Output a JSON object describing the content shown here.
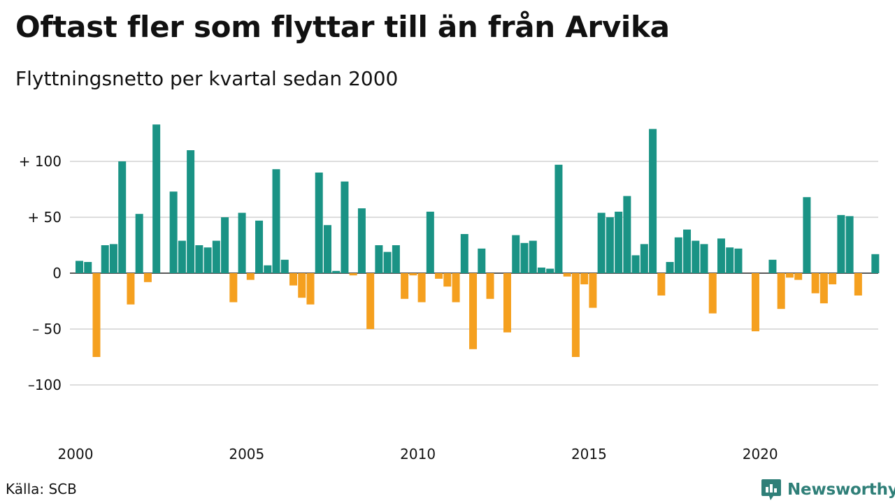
{
  "title": "Oftast fler som flyttar till än från Arvika",
  "subtitle": "Flyttningsnetto per kvartal sedan 2000",
  "source": "Källa: SCB",
  "brand": {
    "name": "Newsworthy",
    "icon": "newsworthy-logo-icon",
    "color": "#2f7f78"
  },
  "chart_data": {
    "type": "bar",
    "title": "Oftast fler som flyttar till än från Arvika",
    "subtitle": "Flyttningsnetto per kvartal sedan 2000",
    "x_start": "2000Q1",
    "x_ticks": [
      "2000",
      "2005",
      "2010",
      "2015",
      "2020"
    ],
    "y_ticks": [
      100,
      50,
      0,
      -50,
      -100
    ],
    "y_tick_labels": [
      "+ 100",
      "+  50",
      "0",
      "– 50",
      "–100"
    ],
    "ylim": [
      -130,
      140
    ],
    "grid": true,
    "colors": {
      "positive": "#1a9385",
      "negative": "#f5a01f",
      "grid": "#dddddd",
      "zero_line": "#222222"
    },
    "values": [
      11,
      10,
      -75,
      25,
      26,
      100,
      -28,
      53,
      -8,
      133,
      0,
      73,
      29,
      110,
      25,
      23,
      29,
      50,
      -26,
      54,
      -6,
      47,
      7,
      93,
      12,
      -11,
      -22,
      -28,
      90,
      43,
      2,
      82,
      -2,
      58,
      -50,
      25,
      19,
      25,
      -23,
      -2,
      -26,
      55,
      -5,
      -12,
      -26,
      35,
      -68,
      22,
      -23,
      0,
      -53,
      34,
      27,
      29,
      5,
      4,
      97,
      -3,
      -75,
      -10,
      -31,
      54,
      50,
      55,
      69,
      16,
      26,
      129,
      -20,
      10,
      32,
      39,
      29,
      26,
      -36,
      31,
      23,
      22,
      0,
      -52,
      0,
      12,
      -32,
      -4,
      -6,
      68,
      -18,
      -27,
      -10,
      52,
      51,
      -20,
      0,
      17
    ]
  }
}
